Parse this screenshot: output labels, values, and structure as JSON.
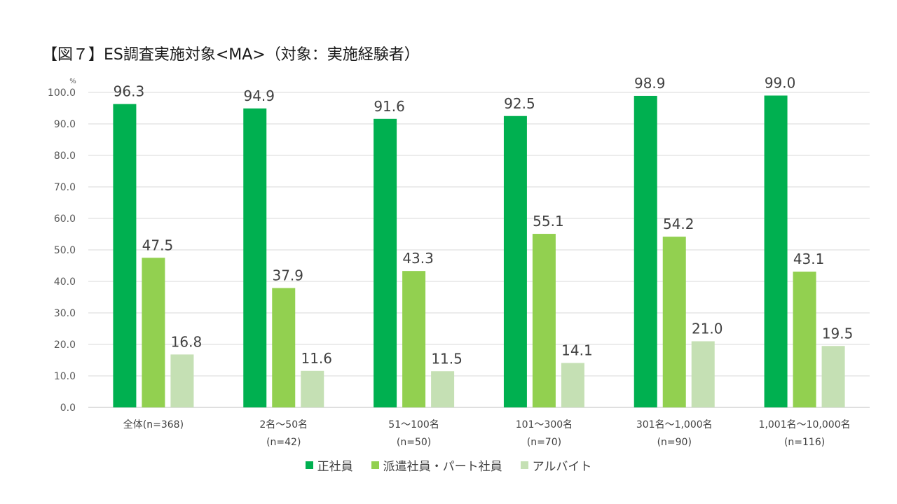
{
  "chart_data": {
    "type": "bar",
    "title": "【図７】ES調査実施対象<MA>（対象：実施経験者）",
    "yunit": "%",
    "ylim": [
      0,
      100
    ],
    "yticks": [
      "0.0",
      "10.0",
      "20.0",
      "30.0",
      "40.0",
      "50.0",
      "60.0",
      "70.0",
      "80.0",
      "90.0",
      "100.0"
    ],
    "grid": true,
    "categories": [
      {
        "line1": "全体(n=368)",
        "line2": ""
      },
      {
        "line1": "2名～50名",
        "line2": "(n=42)"
      },
      {
        "line1": "51～100名",
        "line2": "(n=50)"
      },
      {
        "line1": "101～300名",
        "line2": "(n=70)"
      },
      {
        "line1": "301名～1,000名",
        "line2": "(n=90)"
      },
      {
        "line1": "1,001名～10,000名",
        "line2": "(n=116)"
      }
    ],
    "series": [
      {
        "name": "正社員",
        "color": "#00b050",
        "values": [
          96.3,
          94.9,
          91.6,
          92.5,
          98.9,
          99.0
        ]
      },
      {
        "name": "派遣社員・パート社員",
        "color": "#92d050",
        "values": [
          47.5,
          37.9,
          43.3,
          55.1,
          54.2,
          43.1
        ]
      },
      {
        "name": "アルバイト",
        "color": "#c5e0b4",
        "values": [
          16.8,
          11.6,
          11.5,
          14.1,
          21.0,
          19.5
        ]
      }
    ],
    "legend_position": "bottom"
  }
}
